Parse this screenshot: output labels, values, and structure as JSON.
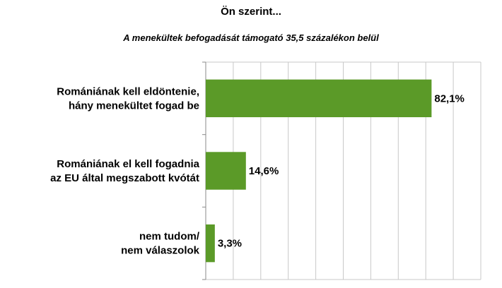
{
  "chart_data": {
    "type": "bar",
    "orientation": "horizontal",
    "title": "Ön szerint...",
    "subtitle": "A menekültek befogadását támogató 35,5 százalékon belül",
    "categories": [
      [
        "Romániának kell eldöntenie,",
        "hány menekültet fogad be"
      ],
      [
        "Romániának el kell fogadnia",
        "az EU által megszabott kvótát"
      ],
      [
        "nem tudom/",
        "nem válaszolok"
      ]
    ],
    "values": [
      82.1,
      14.6,
      3.3
    ],
    "value_labels": [
      "82,1%",
      "14,6%",
      "3,3%"
    ],
    "xlim": [
      0,
      100
    ],
    "grid": true,
    "bar_color": "#5b9a28",
    "grid_color": "#c8c8c8"
  }
}
